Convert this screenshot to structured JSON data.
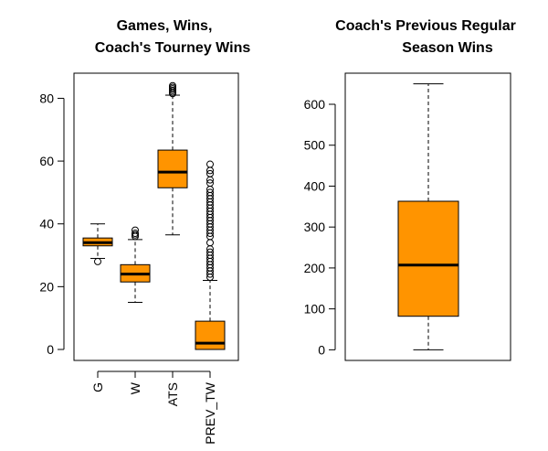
{
  "chart_data": [
    {
      "type": "box",
      "title_lines": [
        "Games, Wins,",
        "Coach's Tourney Wins"
      ],
      "xlabel": "",
      "ylabel": "",
      "ylim": [
        -3.5,
        88
      ],
      "yticks": [
        0,
        20,
        40,
        60,
        80
      ],
      "grid": false,
      "legend": "none",
      "categories": [
        "G",
        "W",
        "ATS",
        "PREV_TW"
      ],
      "boxes": [
        {
          "name": "G",
          "whisker_low": 29,
          "q1": 33,
          "median": 34,
          "q3": 35.5,
          "whisker_high": 40,
          "outliers": [
            28
          ]
        },
        {
          "name": "W",
          "whisker_low": 15,
          "q1": 21.5,
          "median": 24,
          "q3": 27,
          "whisker_high": 35,
          "outliers": [
            36,
            36.5,
            37,
            38
          ]
        },
        {
          "name": "ATS",
          "whisker_low": 36.5,
          "q1": 51.5,
          "median": 56.5,
          "q3": 63.5,
          "whisker_high": 81,
          "outliers": [
            81.5,
            82,
            82.5,
            83,
            83.5,
            84
          ]
        },
        {
          "name": "PREV_TW",
          "whisker_low": 0,
          "q1": 0,
          "median": 2,
          "q3": 9,
          "whisker_high": 22,
          "outliers": [
            23,
            24,
            25,
            26,
            27,
            28,
            29,
            30,
            31,
            32,
            34,
            36,
            37,
            38,
            39,
            40,
            41,
            42,
            43,
            44,
            45,
            46,
            47,
            48,
            49,
            50,
            51,
            53,
            54,
            56,
            57,
            59
          ]
        }
      ],
      "box_color": "#ff9400"
    },
    {
      "type": "box",
      "title_lines": [
        "Coach's Previous Regular",
        "Season Wins"
      ],
      "xlabel": "",
      "ylabel": "",
      "ylim": [
        -26,
        676
      ],
      "yticks": [
        0,
        100,
        200,
        300,
        400,
        500,
        600
      ],
      "grid": false,
      "legend": "none",
      "categories": [],
      "boxes": [
        {
          "name": "",
          "whisker_low": 0,
          "q1": 82,
          "median": 207,
          "q3": 363,
          "whisker_high": 650,
          "outliers": []
        }
      ],
      "box_color": "#ff9400"
    }
  ]
}
